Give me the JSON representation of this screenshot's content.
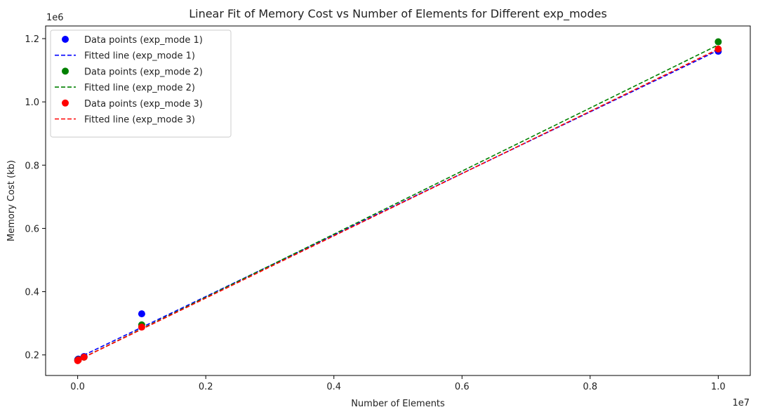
{
  "chart_data": {
    "type": "scatter",
    "title": "Linear Fit of Memory Cost vs Number of Elements for Different exp_modes",
    "xlabel": "Number of Elements",
    "ylabel": "Memory Cost (kb)",
    "x_offset_text": "1e7",
    "y_offset_text": "1e6",
    "x_ticks": [
      "0.0",
      "0.2",
      "0.4",
      "0.6",
      "0.8",
      "1.0"
    ],
    "y_ticks": [
      "0.2",
      "0.4",
      "0.6",
      "0.8",
      "1.0",
      "1.2"
    ],
    "x_tick_values": [
      0,
      2000000,
      4000000,
      6000000,
      8000000,
      10000000
    ],
    "y_tick_values": [
      200000,
      400000,
      600000,
      800000,
      1000000,
      1200000
    ],
    "xlim": [
      -500000,
      10500000
    ],
    "ylim": [
      135000,
      1240000
    ],
    "grid": false,
    "legend_placement": "upper-left",
    "series": [
      {
        "name": "Data points (exp_mode 1)",
        "kind": "scatter",
        "color": "#0000ff",
        "x": [
          1000,
          10000,
          100000,
          1000000,
          10000000
        ],
        "y": [
          185000,
          187000,
          195000,
          330000,
          1160000
        ]
      },
      {
        "name": "Fitted line (exp_mode 1)",
        "kind": "line",
        "style": "dashed",
        "color": "#0000ff",
        "x": [
          1000,
          10000000
        ],
        "y": [
          190000,
          1163000
        ]
      },
      {
        "name": "Data points (exp_mode 2)",
        "kind": "scatter",
        "color": "#008000",
        "x": [
          1000,
          10000,
          100000,
          1000000,
          10000000
        ],
        "y": [
          183000,
          185000,
          193000,
          295000,
          1190000
        ]
      },
      {
        "name": "Fitted line (exp_mode 2)",
        "kind": "line",
        "style": "dashed",
        "color": "#008000",
        "x": [
          1000,
          10000000
        ],
        "y": [
          183000,
          1180000
        ]
      },
      {
        "name": "Data points (exp_mode 3)",
        "kind": "scatter",
        "color": "#ff0000",
        "x": [
          1000,
          10000,
          100000,
          1000000,
          10000000
        ],
        "y": [
          182000,
          184000,
          193000,
          288000,
          1167000
        ]
      },
      {
        "name": "Fitted line (exp_mode 3)",
        "kind": "line",
        "style": "dashed",
        "color": "#ff0000",
        "x": [
          1000,
          10000000
        ],
        "y": [
          183000,
          1167000
        ]
      }
    ]
  }
}
